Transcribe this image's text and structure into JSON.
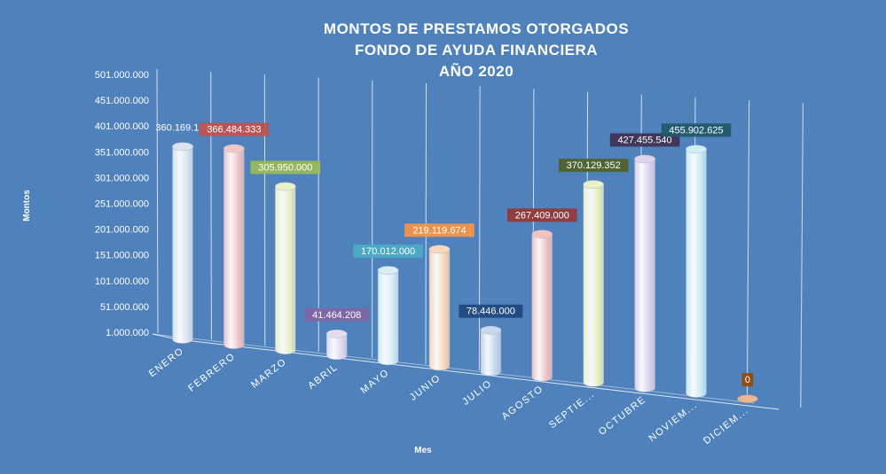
{
  "chart_data": {
    "type": "bar",
    "style": "3d-cylinder",
    "title_lines": [
      "MONTOS  DE  PRESTAMOS  OTORGADOS",
      "FONDO DE AYUDA FINANCIERA",
      "AÑO 2020"
    ],
    "xlabel": "Mes",
    "ylabel": "Montos",
    "ylim": [
      1000000,
      501000000
    ],
    "yticks": [
      "501.000.000",
      "451.000.000",
      "401.000.000",
      "351.000.000",
      "301.000.000",
      "251.000.000",
      "201.000.000",
      "151.000.000",
      "101.000.000",
      "51.000.000",
      "1.000.000"
    ],
    "categories": [
      "ENERO",
      "FEBRERO",
      "MARZO",
      "ABRIL",
      "MAYO",
      "JUNIO",
      "JULIO",
      "AGOSTO",
      "SEPTIE...",
      "OCTUBRE",
      "NOVIEM...",
      "DICIEM..."
    ],
    "values": [
      360169159,
      366484333,
      305950000,
      41464208,
      170012000,
      219119674,
      78446000,
      267409000,
      370129352,
      427455540,
      455902625,
      0
    ],
    "value_labels": [
      "360.169.159",
      "366.484.333",
      "305.950.000",
      "41.464.208",
      "170.012.000",
      "219.119.674",
      "78.446.000",
      "267.409.000",
      "370.129.352",
      "427.455.540",
      "455.902.625",
      "0"
    ],
    "bar_colors": [
      "#dbe5f1",
      "#f2c6c6",
      "#ebf1c8",
      "#e6dcf0",
      "#d8eef5",
      "#fbd9b8",
      "#c9d7ec",
      "#f4c1c1",
      "#e9f2c4",
      "#ddd3ec",
      "#cdeef4",
      "#e8b894"
    ],
    "label_bg_colors": [
      null,
      "#c0504d",
      "#9bbb59",
      "#8064a2",
      "#4bacc6",
      "#f79646",
      "#1f497d",
      "#953735",
      "#4f6228",
      "#3f3151",
      "#215968",
      "#974806"
    ],
    "background": "#4f81bd",
    "grid": false
  }
}
